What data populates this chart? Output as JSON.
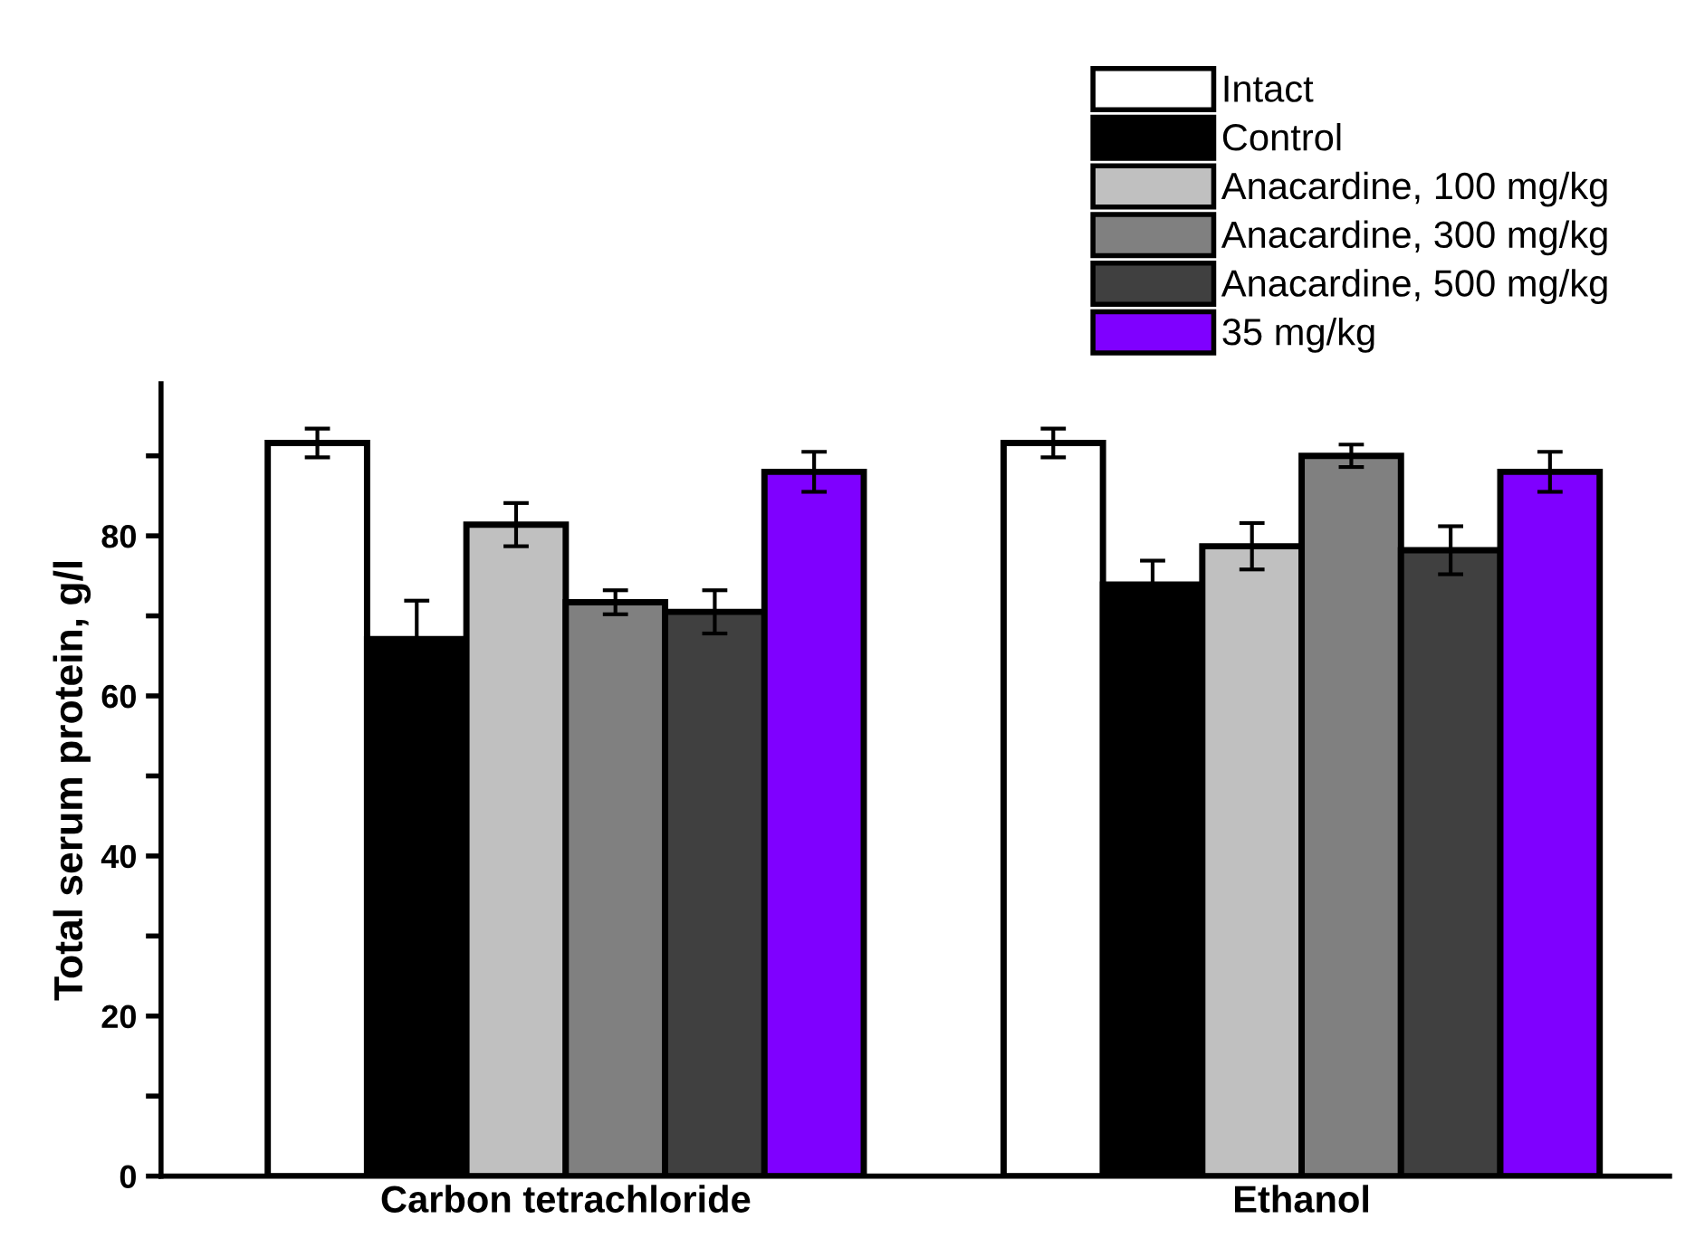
{
  "chart_data": {
    "type": "bar",
    "categories": [
      "Carbon tetrachloride",
      "Ethanol"
    ],
    "ylabel": "Total serum protein, g/l",
    "ylim": [
      0,
      99
    ],
    "yticks": [
      0,
      {
        "value": 10,
        "label": null
      },
      20,
      {
        "value": 30,
        "label": null
      },
      40,
      {
        "value": 50,
        "label": null
      },
      60,
      {
        "value": 70,
        "label": null
      },
      80,
      {
        "value": 90,
        "label": null
      }
    ],
    "legend": "top right",
    "series": [
      {
        "name": "Intact",
        "color": "#ffffff",
        "values": [
          91.6,
          91.6
        ],
        "errors": [
          1.8,
          1.8
        ]
      },
      {
        "name": "Control",
        "color": "#000000",
        "values": [
          67.1,
          73.9
        ],
        "errors": [
          4.8,
          3.0
        ]
      },
      {
        "name": "Anacardine, 100 mg/kg",
        "color": "#c0c0c0",
        "values": [
          81.4,
          78.7
        ],
        "errors": [
          2.7,
          2.9
        ]
      },
      {
        "name": "Anacardine, 300 mg/kg",
        "color": "#808080",
        "values": [
          71.7,
          90.0
        ],
        "errors": [
          1.5,
          1.4
        ]
      },
      {
        "name": "Anacardine, 500 mg/kg",
        "color": "#404040",
        "values": [
          70.5,
          78.2
        ],
        "errors": [
          2.7,
          3.0
        ]
      },
      {
        "name": "35 mg/kg",
        "color": "#7f00ff",
        "values": [
          88.0,
          88.0
        ],
        "errors": [
          2.5,
          2.5
        ]
      }
    ]
  }
}
